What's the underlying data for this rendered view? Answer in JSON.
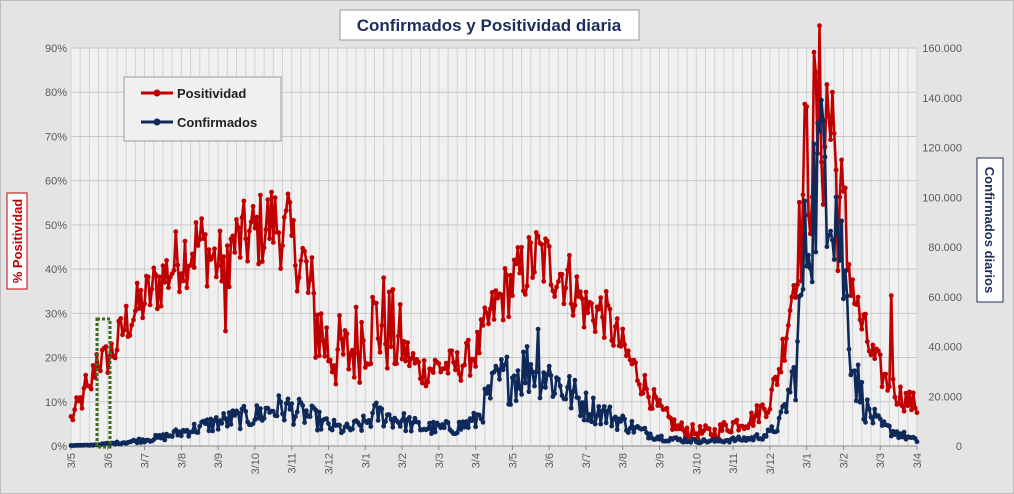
{
  "chart_data": {
    "type": "line",
    "title": "Confirmados  y Positividad  diaria",
    "ylabel_left": "% Positividad",
    "ylabel_right": "Confirmados diarios",
    "x_ticks": [
      "3/5",
      "3/6",
      "3/7",
      "3/8",
      "3/9",
      "3/10",
      "3/11",
      "3/12",
      "3/1",
      "3/2",
      "3/3",
      "3/4",
      "3/5",
      "3/6",
      "3/7",
      "3/8",
      "3/9",
      "3/10",
      "3/11",
      "3/12",
      "3/1",
      "3/2",
      "3/3",
      "3/4"
    ],
    "y_left_ticks": [
      "0%",
      "10%",
      "20%",
      "30%",
      "40%",
      "50%",
      "60%",
      "70%",
      "80%",
      "90%"
    ],
    "y_left_range": [
      0,
      90
    ],
    "y_right_ticks": [
      "0",
      "20.000",
      "40.000",
      "60.000",
      "80.000",
      "100.000",
      "120.000",
      "140.000",
      "160.000"
    ],
    "y_right_range": [
      0,
      160000
    ],
    "grid": true,
    "legend_position": "top-left",
    "series": [
      {
        "name": "Positividad",
        "axis": "left",
        "color": "#c00000",
        "knots": [
          [
            0,
            6
          ],
          [
            0.25,
            10
          ],
          [
            0.5,
            12
          ],
          [
            0.7,
            20
          ],
          [
            0.9,
            19
          ],
          [
            1.2,
            22
          ],
          [
            1.5,
            28
          ],
          [
            2,
            33
          ],
          [
            2.5,
            38
          ],
          [
            3,
            43
          ],
          [
            3.5,
            46
          ],
          [
            4,
            41
          ],
          [
            4.5,
            46
          ],
          [
            5,
            48
          ],
          [
            5.5,
            51
          ],
          [
            6,
            46
          ],
          [
            6.3,
            40
          ],
          [
            6.6,
            30
          ],
          [
            7,
            22
          ],
          [
            7.5,
            20
          ],
          [
            8,
            27
          ],
          [
            8.5,
            28
          ],
          [
            9,
            22
          ],
          [
            9.5,
            17
          ],
          [
            10,
            18
          ],
          [
            10.5,
            18
          ],
          [
            11,
            21
          ],
          [
            11.5,
            31
          ],
          [
            12,
            37
          ],
          [
            12.7,
            43
          ],
          [
            13,
            41
          ],
          [
            13.5,
            38
          ],
          [
            14,
            31
          ],
          [
            14.5,
            30
          ],
          [
            15,
            22
          ],
          [
            15.5,
            15
          ],
          [
            16,
            8
          ],
          [
            16.5,
            4
          ],
          [
            17,
            3
          ],
          [
            17.5,
            3
          ],
          [
            18,
            5
          ],
          [
            18.5,
            6
          ],
          [
            19,
            10
          ],
          [
            19.3,
            19
          ],
          [
            19.7,
            40
          ],
          [
            20,
            64
          ],
          [
            20.3,
            73
          ],
          [
            20.6,
            75
          ],
          [
            20.9,
            54
          ],
          [
            21.1,
            44
          ],
          [
            21.4,
            30
          ],
          [
            21.8,
            20
          ],
          [
            22.2,
            14
          ],
          [
            22.6,
            11
          ],
          [
            23,
            9
          ]
        ],
        "spikes": [
          [
            0.4,
            16
          ],
          [
            5.9,
            57
          ],
          [
            4.2,
            26
          ],
          [
            22.3,
            34
          ],
          [
            20.7,
            80
          ]
        ]
      },
      {
        "name": "Confirmados",
        "axis": "right",
        "color": "#0f2a5a",
        "knots": [
          [
            0,
            200
          ],
          [
            0.5,
            300
          ],
          [
            1,
            900
          ],
          [
            1.5,
            1500
          ],
          [
            2,
            2500
          ],
          [
            2.5,
            3500
          ],
          [
            3,
            5500
          ],
          [
            3.5,
            7500
          ],
          [
            4,
            9500
          ],
          [
            4.5,
            11000
          ],
          [
            5,
            12000
          ],
          [
            5.5,
            15000
          ],
          [
            5.9,
            15000
          ],
          [
            6.5,
            12000
          ],
          [
            7,
            8000
          ],
          [
            7.5,
            6500
          ],
          [
            8,
            9000
          ],
          [
            8.3,
            13000
          ],
          [
            8.8,
            11000
          ],
          [
            9.5,
            7500
          ],
          [
            10,
            7000
          ],
          [
            10.5,
            7500
          ],
          [
            11,
            10000
          ],
          [
            11.3,
            18000
          ],
          [
            11.6,
            26000
          ],
          [
            12,
            28000
          ],
          [
            12.6,
            33000
          ],
          [
            13,
            28000
          ],
          [
            13.5,
            22000
          ],
          [
            14,
            16000
          ],
          [
            14.5,
            13000
          ],
          [
            15,
            9500
          ],
          [
            15.5,
            6000
          ],
          [
            16,
            3500
          ],
          [
            16.5,
            2500
          ],
          [
            17,
            2000
          ],
          [
            17.5,
            2000
          ],
          [
            18,
            2500
          ],
          [
            18.5,
            3000
          ],
          [
            19,
            5000
          ],
          [
            19.3,
            10000
          ],
          [
            19.7,
            30000
          ],
          [
            20,
            85000
          ],
          [
            20.3,
            110000
          ],
          [
            20.5,
            125000
          ],
          [
            20.8,
            98000
          ],
          [
            21,
            70000
          ],
          [
            21.3,
            30000
          ],
          [
            21.6,
            15000
          ],
          [
            22,
            8000
          ],
          [
            22.5,
            5000
          ],
          [
            23,
            2000
          ]
        ],
        "spikes": [
          [
            20.4,
            139000
          ],
          [
            12.7,
            47000
          ]
        ]
      }
    ]
  },
  "legend": [
    {
      "label": "Positividad",
      "color": "#c00000"
    },
    {
      "label": "Confirmados",
      "color": "#0f2a5a"
    }
  ]
}
